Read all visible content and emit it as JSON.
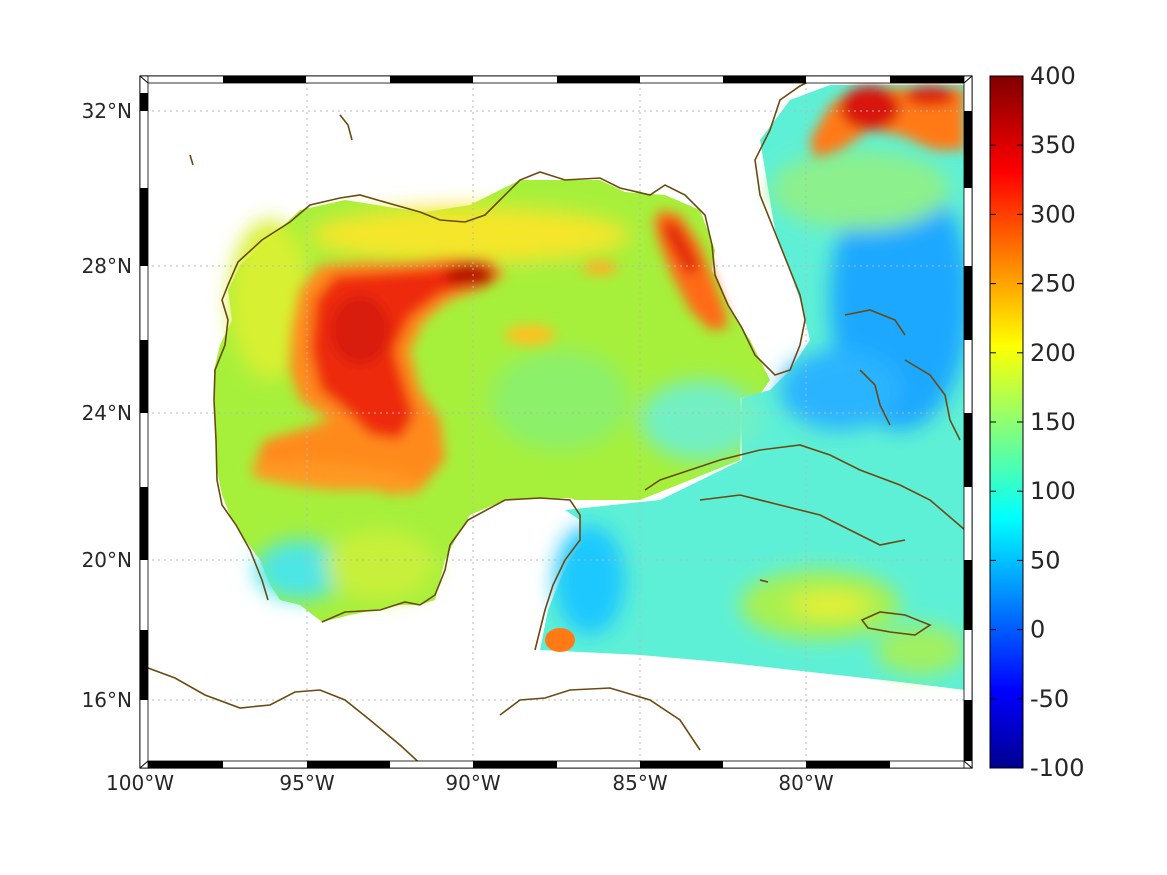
{
  "chart_data": {
    "type": "heatmap",
    "title": "",
    "xlabel": "",
    "ylabel": "",
    "xlim": [
      -100,
      -75
    ],
    "ylim": [
      14.3,
      32.9
    ],
    "xticks": [
      {
        "value": -100,
        "label": "100°W"
      },
      {
        "value": -95,
        "label": "95°W"
      },
      {
        "value": -90,
        "label": "90°W"
      },
      {
        "value": -85,
        "label": "85°W"
      },
      {
        "value": -80,
        "label": "80°W"
      }
    ],
    "yticks": [
      {
        "value": 16,
        "label": "16°N"
      },
      {
        "value": 20,
        "label": "20°N"
      },
      {
        "value": 24,
        "label": "24°N"
      },
      {
        "value": 28,
        "label": "28°N"
      },
      {
        "value": 32,
        "label": "32°N"
      }
    ],
    "grid": true,
    "colorbar": {
      "colormap": "jet",
      "range": [
        -100,
        400
      ],
      "ticks": [
        400,
        350,
        300,
        250,
        200,
        150,
        100,
        50,
        0,
        -50,
        -100
      ]
    },
    "field_description": "ocean values shown as a jet-colored raster over the Gulf of Mexico and Caribbean; land left white",
    "regions": [
      {
        "name": "central western Gulf",
        "lon": [
          -95.5,
          -91.5
        ],
        "lat": [
          23.0,
          27.8
        ],
        "value": 320
      },
      {
        "name": "northwestern Gulf ridge",
        "lon": [
          -92.5,
          -89.0
        ],
        "lat": [
          27.0,
          28.1
        ],
        "value": 350
      },
      {
        "name": "loop current eddy off Florida",
        "lon": [
          -84.7,
          -82.8
        ],
        "lat": [
          26.4,
          29.0
        ],
        "value": 330
      },
      {
        "name": "Gulf Stream off Carolinas",
        "lon": [
          -78.5,
          -75.5
        ],
        "lat": [
          31.3,
          32.8
        ],
        "value": 370
      },
      {
        "name": "southwestern Gulf",
        "lon": [
          -97.5,
          -93.5
        ],
        "lat": [
          18.2,
          22.5
        ],
        "value": 150
      },
      {
        "name": "Yucatan Channel",
        "lon": [
          -87.5,
          -85.5
        ],
        "lat": [
          18.0,
          21.5
        ],
        "value": 80
      },
      {
        "name": "Caribbean south of Cuba",
        "lon": [
          -86.0,
          -75.5
        ],
        "lat": [
          16.0,
          21.0
        ],
        "value": 140
      },
      {
        "name": "Atlantic east of Bahamas",
        "lon": [
          -80.0,
          -75.5
        ],
        "lat": [
          22.0,
          30.0
        ],
        "value": 60
      }
    ]
  }
}
